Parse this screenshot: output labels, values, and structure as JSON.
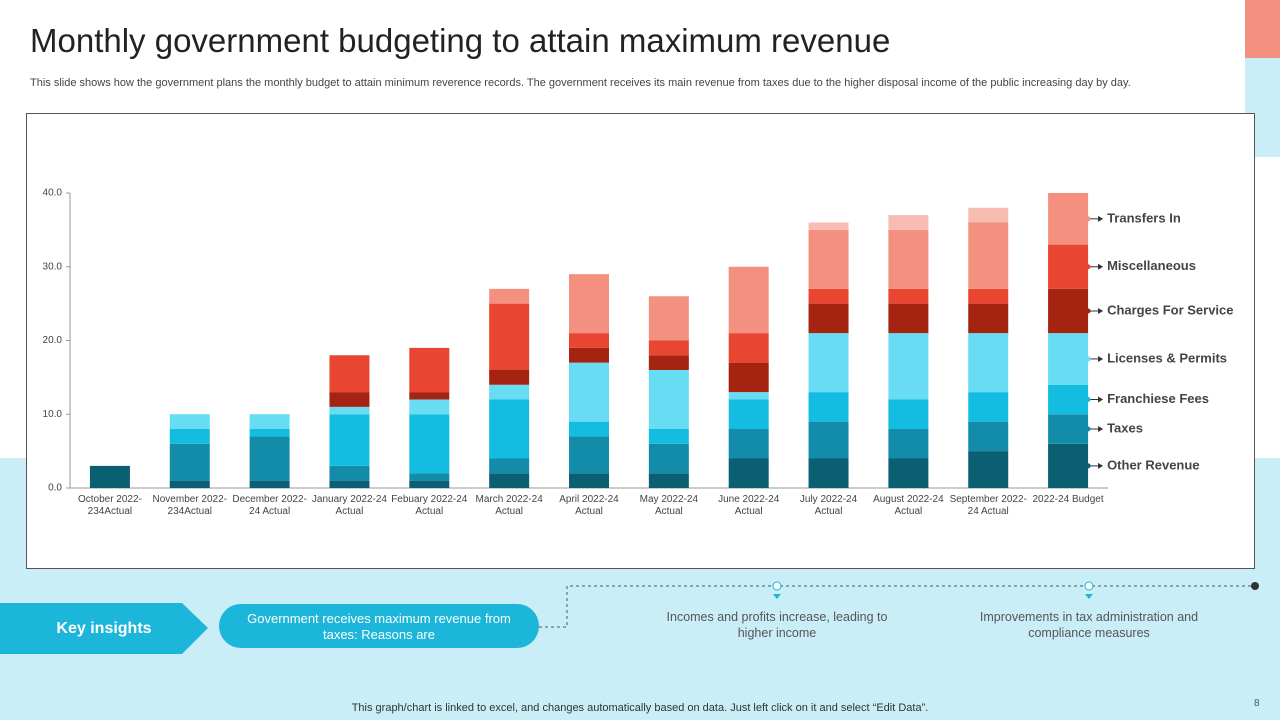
{
  "header": {
    "title": "Monthly government budgeting to attain maximum revenue",
    "subtitle": "This slide shows how the government plans the monthly budget to attain minimum reverence records. The government receives its main revenue from taxes due to the higher disposal income of the public increasing day by day."
  },
  "chart_data": {
    "type": "stacked_bar",
    "categories": [
      "October 2022-234Actual",
      "November 2022-234Actual",
      "December 2022-24 Actual",
      "January 2022-24 Actual",
      "Febuary 2022-24 Actual",
      "March 2022-24 Actual",
      "April 2022-24 Actual",
      "May 2022-24 Actual",
      "June 2022-24 Actual",
      "July 2022-24 Actual",
      "August 2022-24 Actual",
      "September 2022-24 Actual",
      "2022-24 Budget"
    ],
    "series": [
      {
        "name": "Other Revenue",
        "color": "#0b5f73",
        "values": [
          3,
          1,
          1,
          1,
          1,
          2,
          2,
          2,
          4,
          4,
          4,
          5,
          6
        ]
      },
      {
        "name": "Taxes",
        "color": "#138ca9",
        "values": [
          0,
          5,
          6,
          2,
          1,
          2,
          5,
          4,
          4,
          5,
          4,
          4,
          4
        ]
      },
      {
        "name": "Franchiese Fees",
        "color": "#13bde2",
        "values": [
          0,
          2,
          1,
          7,
          8,
          8,
          2,
          2,
          4,
          4,
          4,
          4,
          4
        ]
      },
      {
        "name": "Licenses & Permits",
        "color": "#67dcf2",
        "values": [
          0,
          2,
          2,
          1,
          2,
          2,
          8,
          8,
          1,
          8,
          9,
          8,
          7
        ]
      },
      {
        "name": "Charges For Service",
        "color": "#a52311",
        "values": [
          0,
          0,
          0,
          2,
          1,
          2,
          2,
          2,
          4,
          4,
          4,
          4,
          6
        ]
      },
      {
        "name": "Miscellaneous",
        "color": "#e84630",
        "values": [
          0,
          0,
          0,
          5,
          6,
          9,
          2,
          2,
          4,
          2,
          2,
          2,
          6
        ]
      },
      {
        "name": "Transfers In",
        "color": "#f4907f",
        "values": [
          0,
          0,
          0,
          0,
          0,
          2,
          8,
          6,
          9,
          8,
          8,
          9,
          7
        ]
      },
      {
        "color": "#f8bdb2",
        "values": [
          0,
          0,
          0,
          0,
          0,
          0,
          0,
          0,
          0,
          1,
          2,
          2,
          0
        ]
      }
    ],
    "ylim": [
      0,
      40
    ],
    "yticks": [
      {
        "value": 0,
        "label": "0.0"
      },
      {
        "value": 10,
        "label": "10.0"
      },
      {
        "value": 20,
        "label": "20.0"
      },
      {
        "value": 30,
        "label": "30.0"
      },
      {
        "value": 40,
        "label": "40.0"
      }
    ]
  },
  "insights": {
    "label": "Key insights",
    "headline": "Government receives maximum  revenue from taxes: Reasons are",
    "points": [
      "Incomes and profits increase, leading to higher income",
      "Improvements  in tax administration and compliance measures"
    ]
  },
  "footer": {
    "note": "This graph/chart is linked to excel, and changes automatically based on data. Just left click on it and select “Edit Data”.",
    "page": "8"
  }
}
